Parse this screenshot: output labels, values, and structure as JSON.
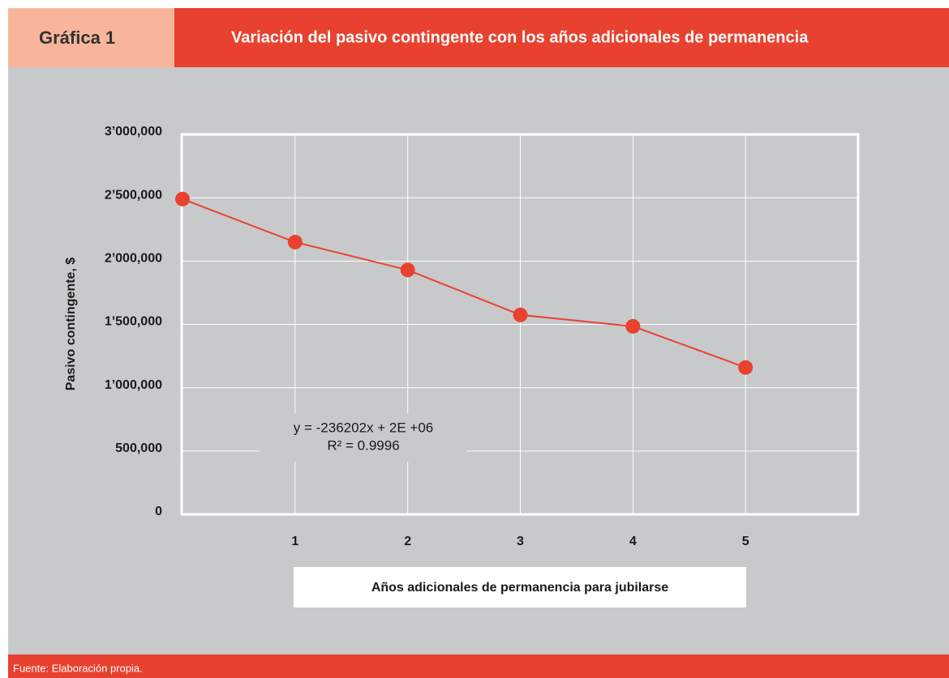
{
  "header": {
    "label": "Gráfica 1"
  },
  "footer": {
    "source": "Fuente: Elaboración propia."
  },
  "chart_data": {
    "type": "line",
    "title": "Variación del pasivo contingente con los años adicionales de permanencia",
    "x_label": "Años adicionales de permanencia para jubilarse",
    "y_label": "Pasivo contingente, $",
    "annotations": [
      "y = -236202x + 2E +06",
      "R² = 0.9996"
    ],
    "x": [
      0,
      1,
      2,
      3,
      4,
      5
    ],
    "values": [
      2490000,
      2150000,
      1930000,
      1575000,
      1485000,
      1160000
    ],
    "color": "#e8412f",
    "xlim": [
      0,
      6
    ],
    "xticks": [
      1,
      2,
      3,
      4,
      5
    ],
    "ylim": [
      0,
      3000000
    ],
    "yticks": [
      0,
      {
        "value": 500000,
        "label": "500,000"
      },
      {
        "value": 1000000,
        "label": "1’000,000"
      },
      {
        "value": 1500000,
        "label": "1’500,000"
      },
      {
        "value": 2000000,
        "label": "2’000,000"
      },
      {
        "value": 2500000,
        "label": "2’500,000"
      },
      {
        "value": 3000000,
        "label": "3’000,000"
      }
    ],
    "grid": true
  }
}
